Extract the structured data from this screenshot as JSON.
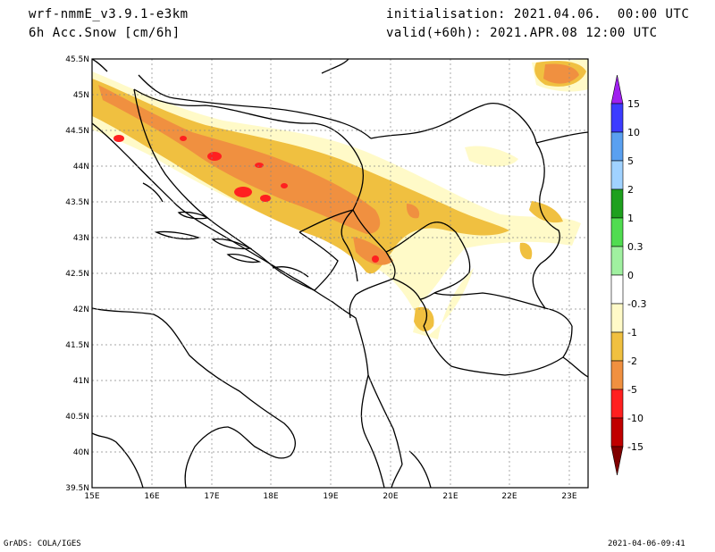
{
  "header": {
    "model": "wrf-nmmE_v3.9.1-e3km",
    "variable": "6h Acc.Snow [cm/6h]",
    "init": "initialisation: 2021.04.06.  00:00 UTC",
    "valid": "valid(+60h): 2021.APR.08 12:00 UTC"
  },
  "footer": {
    "left": "GrADS: COLA/IGES",
    "right": "2021-04-06-09:41"
  },
  "map": {
    "lon_range": [
      15,
      23.3
    ],
    "lat_range": [
      39.5,
      45.5
    ],
    "x_ticks": [
      "15E",
      "16E",
      "17E",
      "18E",
      "19E",
      "20E",
      "21E",
      "22E",
      "23E"
    ],
    "y_ticks": [
      "45.5N",
      "45N",
      "44.5N",
      "44N",
      "43.5N",
      "43N",
      "42.5N",
      "42N",
      "41.5N",
      "41N",
      "40.5N",
      "40N",
      "39.5N"
    ]
  },
  "legend": {
    "labels": [
      "15",
      "10",
      "5",
      "2",
      "1",
      "0.3",
      "0",
      "-0.3",
      "-1",
      "-2",
      "-5",
      "-10",
      "-15"
    ],
    "colors": [
      "#a020f0",
      "#3c3cff",
      "#5aa0f0",
      "#a0d2ff",
      "#1ea01e",
      "#50dc50",
      "#a0f0a0",
      "#ffffff",
      "#fffac8",
      "#f0c040",
      "#f09040",
      "#ff2020",
      "#c00000",
      "#800000"
    ]
  },
  "snow_colors": {
    "light": "#fffac8",
    "gold": "#f0c040",
    "orange": "#f09040",
    "red": "#ff2020"
  }
}
